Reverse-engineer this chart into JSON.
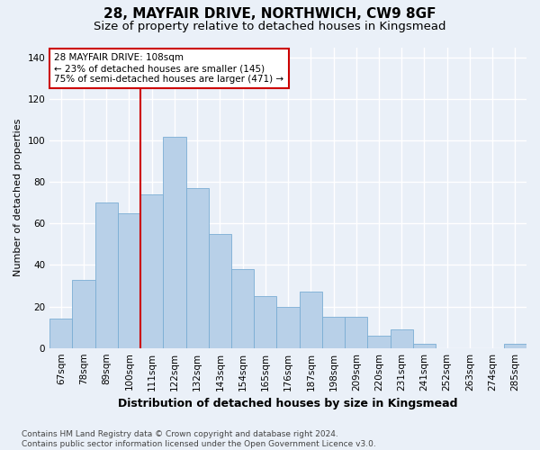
{
  "title1": "28, MAYFAIR DRIVE, NORTHWICH, CW9 8GF",
  "title2": "Size of property relative to detached houses in Kingsmead",
  "xlabel": "Distribution of detached houses by size in Kingsmead",
  "ylabel": "Number of detached properties",
  "categories": [
    "67sqm",
    "78sqm",
    "89sqm",
    "100sqm",
    "111sqm",
    "122sqm",
    "132sqm",
    "143sqm",
    "154sqm",
    "165sqm",
    "176sqm",
    "187sqm",
    "198sqm",
    "209sqm",
    "220sqm",
    "231sqm",
    "241sqm",
    "252sqm",
    "263sqm",
    "274sqm",
    "285sqm"
  ],
  "values": [
    14,
    33,
    70,
    65,
    74,
    102,
    77,
    55,
    38,
    25,
    20,
    27,
    15,
    15,
    6,
    9,
    2,
    0,
    0,
    0,
    2
  ],
  "bar_color": "#b8d0e8",
  "bar_edge_color": "#7aadd4",
  "background_color": "#eaf0f8",
  "grid_color": "#ffffff",
  "vline_x": 3.5,
  "vline_color": "#cc0000",
  "annotation_text": "28 MAYFAIR DRIVE: 108sqm\n← 23% of detached houses are smaller (145)\n75% of semi-detached houses are larger (471) →",
  "annotation_box_color": "#ffffff",
  "annotation_box_edge": "#cc0000",
  "ylim": [
    0,
    145
  ],
  "yticks": [
    0,
    20,
    40,
    60,
    80,
    100,
    120,
    140
  ],
  "footer": "Contains HM Land Registry data © Crown copyright and database right 2024.\nContains public sector information licensed under the Open Government Licence v3.0.",
  "title1_fontsize": 11,
  "title2_fontsize": 9.5,
  "xlabel_fontsize": 9,
  "ylabel_fontsize": 8,
  "tick_fontsize": 7.5,
  "annot_fontsize": 7.5,
  "footer_fontsize": 6.5
}
